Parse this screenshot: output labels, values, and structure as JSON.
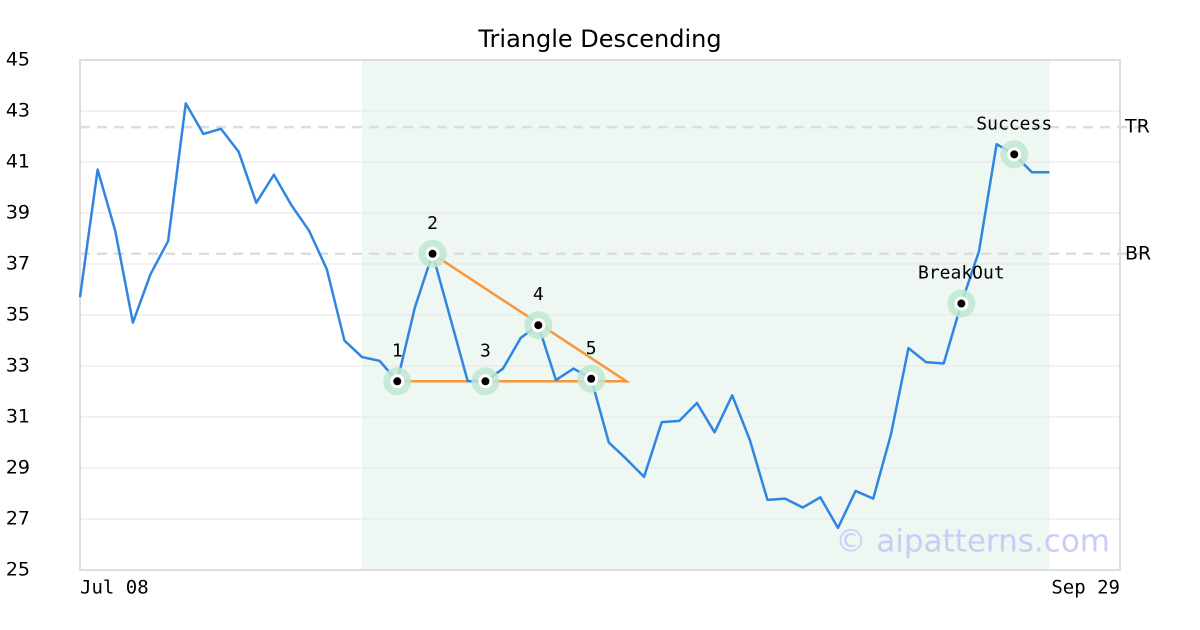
{
  "chart_data": {
    "type": "line",
    "title": "Triangle Descending",
    "watermark": "© aipatterns.com",
    "xlim": [
      0,
      59
    ],
    "xticks": [
      {
        "value": 0,
        "label": "Jul 08"
      },
      {
        "value": 59,
        "label": "Sep 29"
      }
    ],
    "ylim": [
      25,
      45
    ],
    "yticks": [
      25,
      27,
      29,
      31,
      33,
      35,
      37,
      39,
      41,
      43,
      45
    ],
    "grid": true,
    "series": [
      {
        "name": "Price",
        "color": "#2f86e0",
        "x": [
          0,
          1,
          2,
          3,
          4,
          5,
          6,
          7,
          8,
          9,
          10,
          11,
          12,
          13,
          14,
          15,
          16,
          17,
          18,
          19,
          20,
          21,
          22,
          23,
          24,
          25,
          26,
          27,
          28,
          29,
          30,
          31,
          32,
          33,
          34,
          35,
          36,
          37,
          38,
          39,
          40,
          41,
          42,
          43,
          44,
          45,
          46,
          47,
          48,
          49,
          50,
          51,
          52,
          53,
          54,
          55
        ],
        "values": [
          35.7,
          40.7,
          38.3,
          34.7,
          36.6,
          37.9,
          43.3,
          42.1,
          42.3,
          41.4,
          39.4,
          40.5,
          39.3,
          38.3,
          36.8,
          34.0,
          33.35,
          33.2,
          32.4,
          35.3,
          37.4,
          34.9,
          32.4,
          32.4,
          32.9,
          34.1,
          34.6,
          32.45,
          32.9,
          32.5,
          30.0,
          29.35,
          28.65,
          30.8,
          30.85,
          31.55,
          30.4,
          31.85,
          30.1,
          27.75,
          27.8,
          27.45,
          27.85,
          26.65,
          28.1,
          27.8,
          30.3,
          33.7,
          33.15,
          33.1,
          35.45,
          37.5,
          41.7,
          41.3,
          40.6,
          40.6
        ]
      }
    ],
    "highlight_range": [
      16,
      55
    ],
    "highlight_color": "#eef7f2",
    "levels": [
      {
        "label": "TR",
        "value": 42.37
      },
      {
        "label": "BR",
        "value": 37.4
      }
    ],
    "triangle": {
      "color": "#f5973a",
      "x": [
        20,
        31,
        18
      ],
      "y": [
        37.4,
        32.4,
        32.4
      ]
    },
    "points": [
      {
        "label": "1",
        "index": 18
      },
      {
        "label": "2",
        "index": 20
      },
      {
        "label": "3",
        "index": 23
      },
      {
        "label": "4",
        "index": 26
      },
      {
        "label": "5",
        "index": 29
      },
      {
        "label": "BreakOut",
        "index": 50
      },
      {
        "label": "Success",
        "index": 53
      }
    ]
  }
}
